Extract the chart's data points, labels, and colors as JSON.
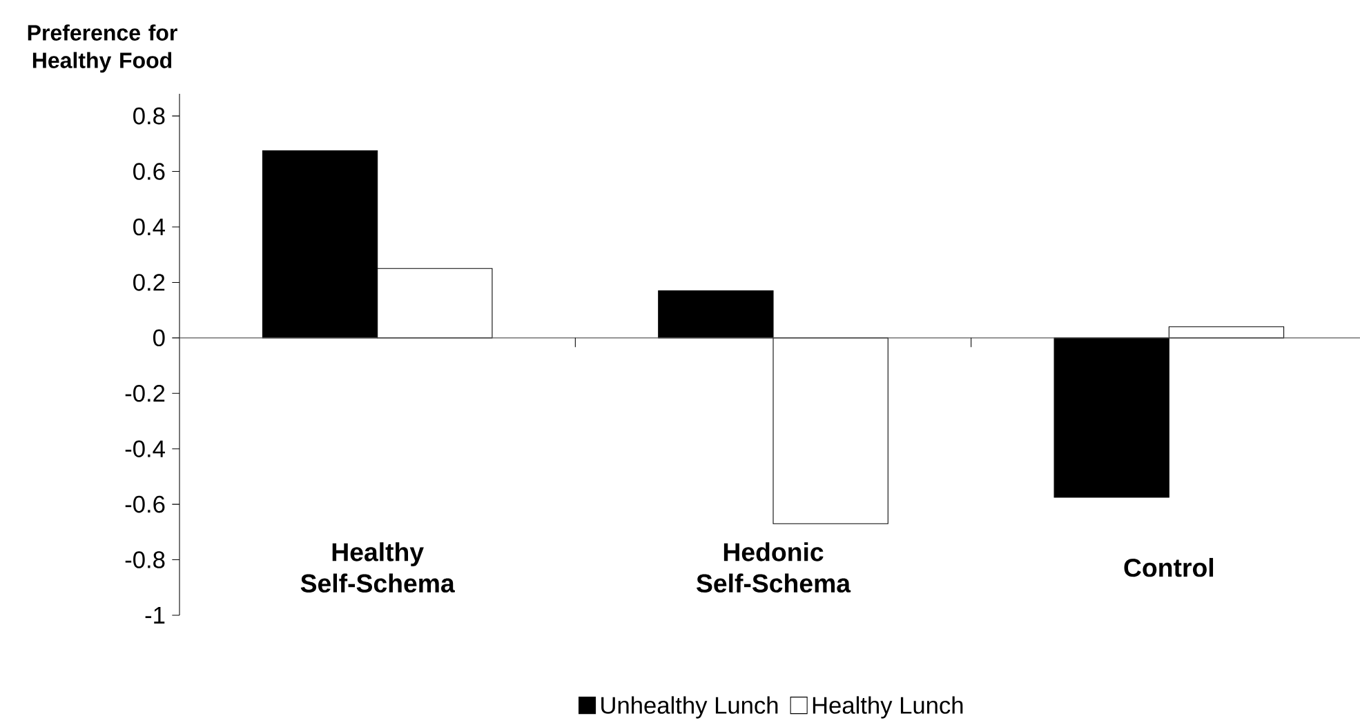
{
  "chart_data": {
    "type": "bar",
    "ylabel": "Preference for Healthy Food",
    "categories": [
      "Healthy Self-Schema",
      "Hedonic Self-Schema",
      "Control"
    ],
    "series": [
      {
        "name": "Unhealthy Lunch",
        "color": "#000000",
        "values": [
          0.675,
          0.17,
          -0.575
        ]
      },
      {
        "name": "Healthy Lunch",
        "color": "#ffffff",
        "values": [
          0.25,
          -0.67,
          0.04
        ]
      }
    ],
    "ylim": [
      -1,
      0.88
    ],
    "yticks": [
      -1,
      -0.8,
      -0.6,
      -0.4,
      -0.2,
      0,
      0.2,
      0.4,
      0.6,
      0.8
    ],
    "legend": "bottom"
  }
}
